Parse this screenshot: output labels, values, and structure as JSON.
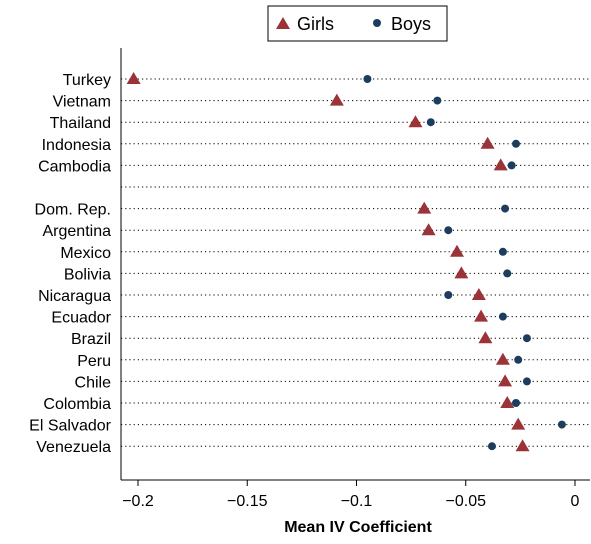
{
  "chart_data": {
    "type": "scatter",
    "xlabel": "Mean IV Coefficient",
    "xlim": [
      -0.21,
      0.005
    ],
    "xticks": [
      -0.2,
      -0.15,
      -0.1,
      -0.05,
      0
    ],
    "xtick_labels": [
      "−0.2",
      "−0.15",
      "−0.1",
      "−0.05",
      "0"
    ],
    "grid": "horizontal dotted",
    "legend_position": "top-center",
    "categories": [
      "Turkey",
      "Vietnam",
      "Thailand",
      "Indonesia",
      "Cambodia",
      "",
      "Dom. Rep.",
      "Argentina",
      "Mexico",
      "Bolivia",
      "Nicaragua",
      "Ecuador",
      "Brazil",
      "Peru",
      "Chile",
      "Colombia",
      "El Salvador",
      "Venezuela"
    ],
    "series": [
      {
        "name": "Girls",
        "marker": "triangle",
        "color": "#9b3438",
        "values": [
          -0.202,
          -0.109,
          -0.073,
          -0.04,
          -0.034,
          null,
          -0.069,
          -0.067,
          -0.054,
          -0.052,
          -0.044,
          -0.043,
          -0.041,
          -0.033,
          -0.032,
          -0.031,
          -0.026,
          -0.024
        ]
      },
      {
        "name": "Boys",
        "marker": "circle",
        "color": "#1c3d5e",
        "values": [
          -0.095,
          -0.063,
          -0.066,
          -0.027,
          -0.029,
          null,
          -0.032,
          -0.058,
          -0.033,
          -0.031,
          -0.058,
          -0.033,
          -0.022,
          -0.026,
          -0.022,
          -0.027,
          -0.006,
          -0.038
        ]
      }
    ]
  }
}
